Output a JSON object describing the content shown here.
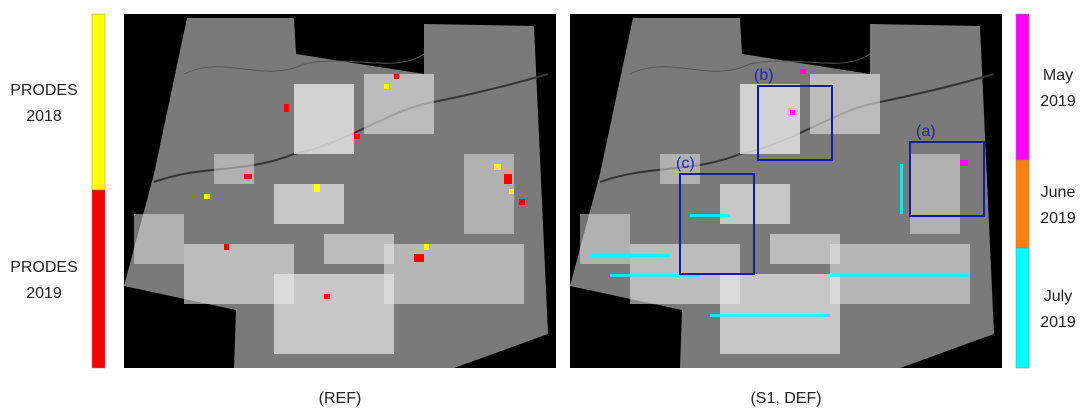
{
  "left_legend": {
    "items": [
      {
        "lines": [
          "PRODES",
          "2018"
        ],
        "color": "#ffff00"
      },
      {
        "lines": [
          "PRODES",
          "2019"
        ],
        "color": "#ff0000"
      }
    ]
  },
  "right_legend": {
    "items": [
      {
        "lines": [
          "May",
          "2019"
        ],
        "color": "#ff00ff"
      },
      {
        "lines": [
          "June",
          "2019"
        ],
        "color": "#ff7f0e"
      },
      {
        "lines": [
          "July",
          "2019"
        ],
        "color": "#00ffff"
      }
    ]
  },
  "panels": [
    {
      "caption": "(REF)"
    },
    {
      "caption": "(S1, DEF)",
      "boxes": [
        "(b)",
        "(a)",
        "(c)"
      ]
    }
  ]
}
